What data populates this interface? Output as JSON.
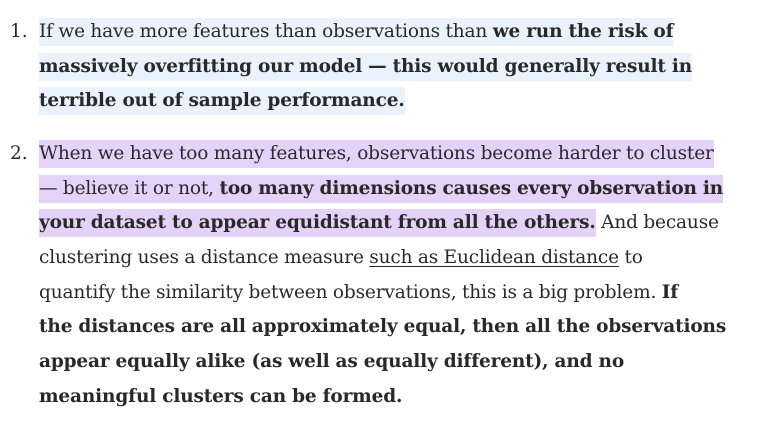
{
  "list": {
    "items": [
      {
        "number": "1.",
        "lines": [
          {
            "plain": "If we have more features than observations than ",
            "bold": "we run the risk of"
          },
          {
            "bold": "massively overfitting our model — this would generally result in"
          },
          {
            "bold": "terrible out of sample performance."
          }
        ]
      },
      {
        "number": "2.",
        "lines": [
          {
            "plain": "When we have too many features, observations become harder to cluster"
          },
          {
            "plain": "— believe it or not, ",
            "bold": "too many dimensions causes every observation in"
          },
          {
            "bold": "your dataset to appear equidistant from all the others.",
            "plain_after": " And because"
          },
          {
            "plain": "clustering uses a distance measure ",
            "link": "such as Euclidean distance",
            "plain_after": " to"
          },
          {
            "plain": "quantify the similarity between observations, this is a big problem. ",
            "bold": "If"
          },
          {
            "bold": "the distances are all approximately equal, then all the observations"
          },
          {
            "bold": "appear equally alike (as well as equally different), and no"
          },
          {
            "bold": "meaningful clusters can be formed."
          }
        ]
      }
    ]
  },
  "colors": {
    "text": "#292929",
    "highlight_item_1": "#e9f2fd",
    "highlight_item_2": "#e4d2f8"
  }
}
